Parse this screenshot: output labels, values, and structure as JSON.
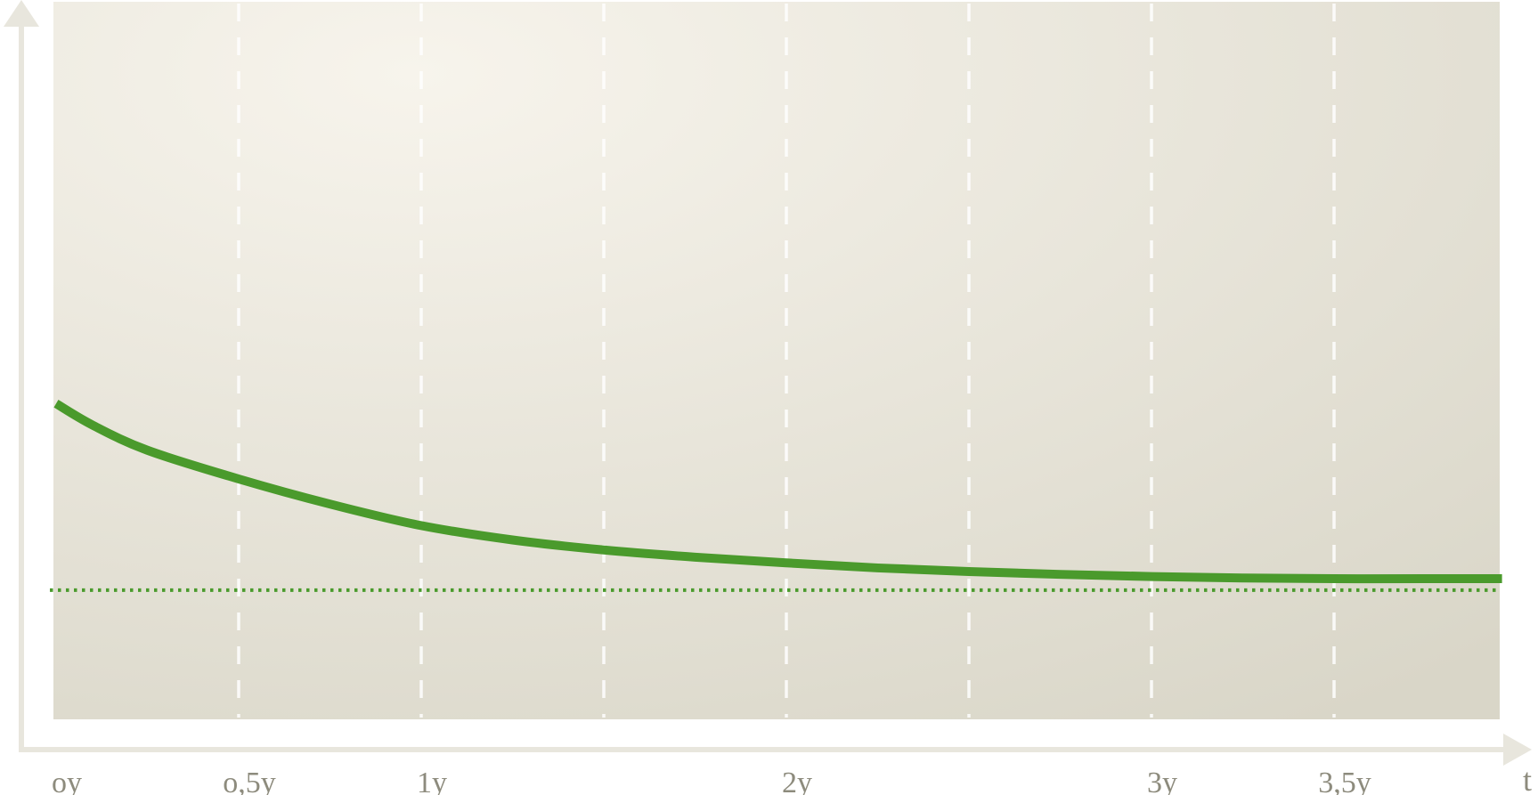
{
  "chart_data": {
    "type": "line",
    "title": "",
    "xlabel": "t",
    "ylabel": "",
    "x_ticks": [
      {
        "value": 0,
        "label": "oy"
      },
      {
        "value": 0.5,
        "label": "o,5y"
      },
      {
        "value": 1,
        "label": "1y"
      },
      {
        "value": 2,
        "label": "2y"
      },
      {
        "value": 3,
        "label": "3y"
      },
      {
        "value": 3.5,
        "label": "3,5y"
      }
    ],
    "grid_x": [
      0.5,
      1,
      1.5,
      2,
      2.5,
      3,
      3.5
    ],
    "xlim": [
      0,
      4.0
    ],
    "ylim": [
      0,
      1
    ],
    "grid": true,
    "series": [
      {
        "kind": "line",
        "color": "#4a9a2c",
        "x": [
          0,
          0.1,
          0.25,
          0.5,
          0.75,
          1.0,
          1.25,
          1.5,
          1.75,
          2.0,
          2.25,
          2.5,
          2.75,
          3.0,
          3.25,
          3.5,
          3.75,
          3.96
        ],
        "y": [
          0.44,
          0.41,
          0.375,
          0.335,
          0.3,
          0.27,
          0.25,
          0.236,
          0.226,
          0.218,
          0.211,
          0.206,
          0.202,
          0.199,
          0.197,
          0.196,
          0.196,
          0.196
        ]
      },
      {
        "kind": "reference",
        "style": "dotted",
        "color": "#4a9a2c",
        "y": 0.18
      }
    ],
    "colors": {
      "plot_bg_light": "#f7f4ec",
      "plot_bg_dark": "#d9d6c8",
      "axis": "#e8e6dd",
      "grid": "#ffffff",
      "text": "#8d8b7d"
    }
  }
}
